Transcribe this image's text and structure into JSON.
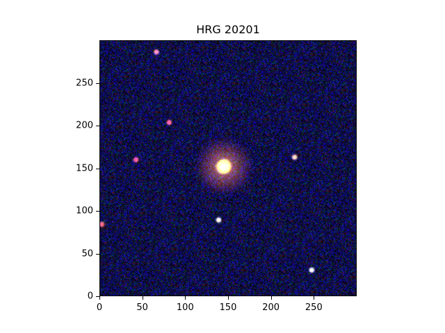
{
  "title": "HRG 20201",
  "axes": {
    "x_ticks": [
      "0",
      "50",
      "100",
      "150",
      "200",
      "250"
    ],
    "y_ticks": [
      "0",
      "50",
      "100",
      "150",
      "200",
      "250"
    ],
    "xlim": [
      0,
      300
    ],
    "ylim": [
      0,
      300
    ]
  },
  "image": {
    "background": "dark blue noise",
    "galaxy_center": [
      145,
      152
    ],
    "stars": [
      {
        "x": 139,
        "y": 89,
        "color": "#ffffdd"
      },
      {
        "x": 228,
        "y": 163,
        "color": "#ffd0a0"
      },
      {
        "x": 248,
        "y": 30,
        "color": "#fffff0"
      },
      {
        "x": 81,
        "y": 204,
        "color": "#ff6040"
      },
      {
        "x": 66,
        "y": 287,
        "color": "#ff8080"
      },
      {
        "x": 2,
        "y": 84,
        "color": "#ff6040"
      },
      {
        "x": 42,
        "y": 160,
        "color": "#ff5050"
      }
    ]
  }
}
